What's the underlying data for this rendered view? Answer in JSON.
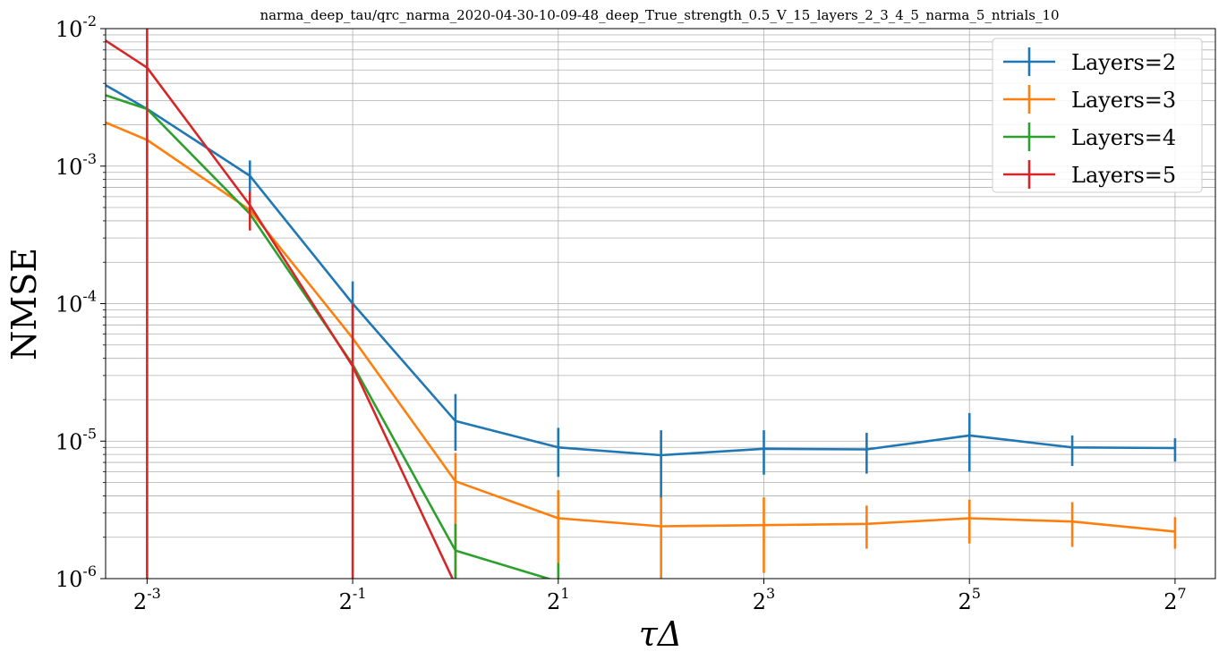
{
  "chart_data": {
    "type": "line",
    "title": "narma_deep_tau/qrc_narma_2020-04-30-10-09-48_deep_True_strength_0.5_V_15_layers_2_3_4_5_narma_5_ntrials_10",
    "xlabel": "τΔ",
    "ylabel": "NMSE",
    "x_scale": "log2",
    "y_scale": "log10",
    "xlim": [
      0.0945,
      168
    ],
    "ylim": [
      1e-06,
      0.01
    ],
    "x_ticks": [
      0.125,
      0.5,
      2,
      8,
      32,
      128
    ],
    "x_tick_labels": [
      {
        "base": "2",
        "exp": "-3"
      },
      {
        "base": "2",
        "exp": "-1"
      },
      {
        "base": "2",
        "exp": "1"
      },
      {
        "base": "2",
        "exp": "3"
      },
      {
        "base": "2",
        "exp": "5"
      },
      {
        "base": "2",
        "exp": "7"
      }
    ],
    "y_ticks": [
      1e-06,
      1e-05,
      0.0001,
      0.001,
      0.01
    ],
    "y_tick_labels": [
      {
        "base": "10",
        "exp": "-6"
      },
      {
        "base": "10",
        "exp": "-5"
      },
      {
        "base": "10",
        "exp": "-4"
      },
      {
        "base": "10",
        "exp": "-3"
      },
      {
        "base": "10",
        "exp": "-2"
      }
    ],
    "grid": true,
    "legend_position": "top-right",
    "x": [
      0.0625,
      0.125,
      0.25,
      0.5,
      1,
      2,
      4,
      8,
      16,
      32,
      64,
      128
    ],
    "series": [
      {
        "name": "Layers=2",
        "color": "#1f77b4",
        "values": [
          0.007,
          0.0026,
          0.00085,
          0.0001,
          1.4e-05,
          9e-06,
          7.9e-06,
          8.8e-06,
          8.7e-06,
          1.1e-05,
          9e-06,
          8.9e-06
        ],
        "err_low": [
          null,
          null,
          0.0006,
          6.3e-05,
          8.5e-06,
          5.5e-06,
          3.8e-06,
          5.7e-06,
          5.8e-06,
          6e-06,
          6.6e-06,
          7.1e-06
        ],
        "err_high": [
          null,
          null,
          0.0011,
          0.000145,
          2.2e-05,
          1.25e-05,
          1.2e-05,
          1.2e-05,
          1.15e-05,
          1.6e-05,
          1.1e-05,
          1.05e-05
        ]
      },
      {
        "name": "Layers=3",
        "color": "#ff7f0e",
        "values": [
          0.0032,
          0.00155,
          0.00048,
          5.6e-05,
          5.1e-06,
          2.75e-06,
          2.4e-06,
          2.45e-06,
          2.5e-06,
          2.75e-06,
          2.6e-06,
          2.2e-06
        ],
        "err_low": [
          null,
          null,
          null,
          null,
          1e-06,
          1.3e-06,
          1e-06,
          1.1e-06,
          1.65e-06,
          1.8e-06,
          1.7e-06,
          1.65e-06
        ],
        "err_high": [
          null,
          null,
          null,
          null,
          8.2e-06,
          4.4e-06,
          3.9e-06,
          3.9e-06,
          3.4e-06,
          3.75e-06,
          3.6e-06,
          2.8e-06
        ]
      },
      {
        "name": "Layers=4",
        "color": "#2ca02c",
        "values": [
          0.0046,
          0.0026,
          0.00045,
          3.6e-05,
          1.6e-06,
          9.5e-07,
          null,
          null,
          null,
          null,
          null,
          null
        ],
        "err_low": [
          null,
          null,
          null,
          null,
          1e-06,
          1e-06,
          null,
          null,
          null,
          null,
          null,
          null
        ],
        "err_high": [
          null,
          null,
          null,
          null,
          2.5e-06,
          1.3e-06,
          null,
          null,
          null,
          null,
          null,
          null
        ]
      },
      {
        "name": "Layers=5",
        "color": "#d62728",
        "values": [
          0.016,
          0.0052,
          0.00052,
          3.5e-05,
          9e-07,
          null,
          null,
          null,
          null,
          null,
          null,
          null
        ],
        "err_low": [
          1e-06,
          1e-06,
          0.00034,
          1e-06,
          1e-06,
          null,
          null,
          null,
          null,
          null,
          null,
          null
        ],
        "err_high": [
          0.01,
          0.01,
          0.00065,
          0.0001,
          1e-06,
          null,
          null,
          null,
          null,
          null,
          null,
          null
        ]
      }
    ]
  }
}
